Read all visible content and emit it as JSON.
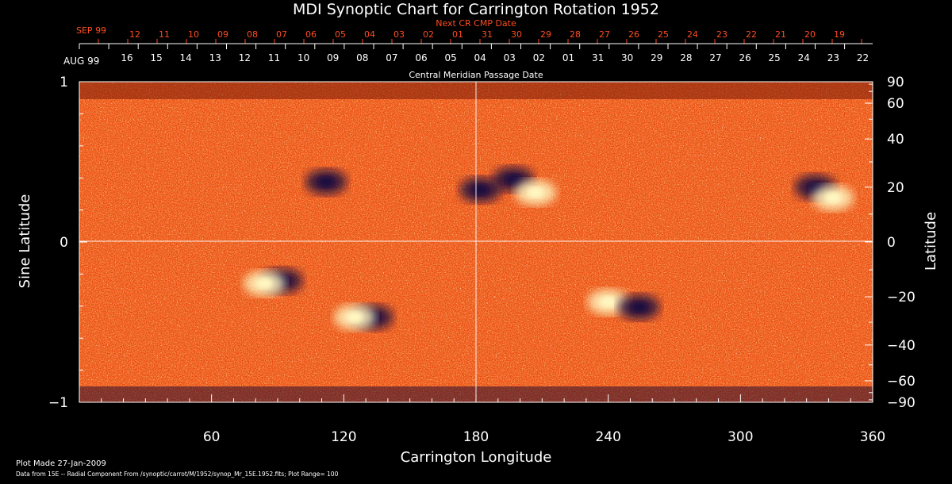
{
  "chart_data": {
    "type": "heatmap",
    "title": "MDI Synoptic Chart for Carrington Rotation 1952",
    "top_label": "Next CR CMP Date",
    "top_month": "SEP 99",
    "top_dates": [
      "12",
      "11",
      "10",
      "09",
      "08",
      "07",
      "06",
      "05",
      "04",
      "03",
      "02",
      "01",
      "31",
      "30",
      "29",
      "28",
      "27",
      "26",
      "25",
      "24",
      "23",
      "22",
      "21",
      "20",
      "19"
    ],
    "second_month": "AUG 99",
    "second_dates": [
      "16",
      "15",
      "14",
      "13",
      "12",
      "11",
      "10",
      "09",
      "08",
      "07",
      "06",
      "05",
      "04",
      "03",
      "02",
      "01",
      "31",
      "30",
      "29",
      "28",
      "27",
      "26",
      "25",
      "24",
      "23",
      "22"
    ],
    "second_label": "Central Meridian Passage Date",
    "xlabel": "Carrington Longitude",
    "xlim": [
      0,
      360
    ],
    "x_ticks": [
      "60",
      "120",
      "180",
      "240",
      "300",
      "360"
    ],
    "ylabel_left": "Sine Latitude",
    "y_left_ticks": [
      "1",
      "0",
      "−1"
    ],
    "ylabel_right": "Latitude",
    "y_right_ticks": [
      "90",
      "60",
      "40",
      "20",
      "0",
      "−20",
      "−40",
      "−60",
      "−90"
    ],
    "colors": {
      "background": "#ff4d1f",
      "positive": "#fff6c0",
      "negative": "#1a1040",
      "accent": "#ff4d1f"
    },
    "active_regions": [
      {
        "lon": 197,
        "lat": 23,
        "polarity": "negative"
      },
      {
        "lon": 207,
        "lat": 18,
        "polarity": "positive"
      },
      {
        "lon": 334,
        "lat": 20,
        "polarity": "negative"
      },
      {
        "lon": 342,
        "lat": 16,
        "polarity": "positive"
      },
      {
        "lon": 92,
        "lat": -14,
        "polarity": "negative"
      },
      {
        "lon": 84,
        "lat": -15,
        "polarity": "positive"
      },
      {
        "lon": 133,
        "lat": -28,
        "polarity": "negative"
      },
      {
        "lon": 125,
        "lat": -28,
        "polarity": "positive"
      },
      {
        "lon": 240,
        "lat": -22,
        "polarity": "positive"
      },
      {
        "lon": 254,
        "lat": -24,
        "polarity": "negative"
      },
      {
        "lon": 112,
        "lat": 22,
        "polarity": "negative"
      },
      {
        "lon": 182,
        "lat": 19,
        "polarity": "negative"
      }
    ]
  },
  "footer": {
    "made": "Plot Made 27-Jan-2009",
    "source": "Data from 15E -- Radial Component From /synoptic/carrot/M/1952/synop_Mr_15E.1952.fits; Plot Range= 100"
  }
}
